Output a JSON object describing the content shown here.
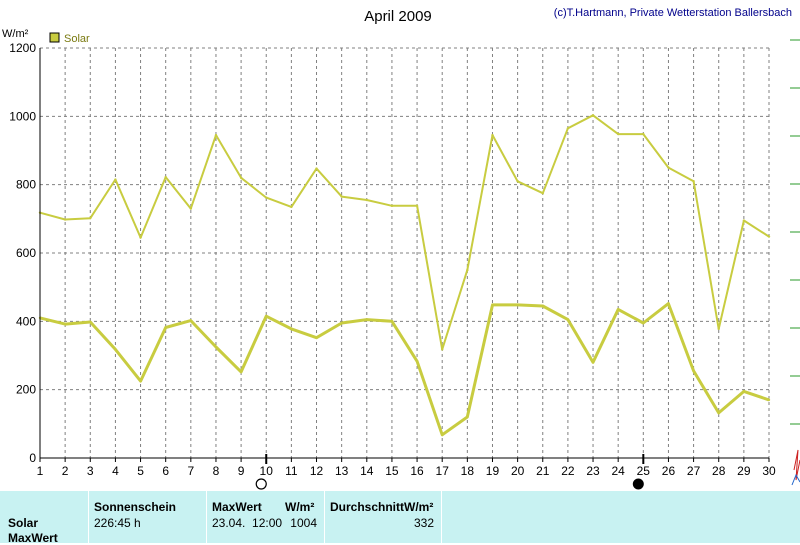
{
  "chart_data": {
    "type": "line",
    "title": "April 2009",
    "credit": "(c)T.Hartmann, Private Wetterstation Ballersbach",
    "ylabel": "W/m²",
    "ylim": [
      0,
      1200
    ],
    "yticks": [
      "0",
      "200",
      "400",
      "600",
      "800",
      "1000",
      "1200"
    ],
    "xlim": [
      1,
      30
    ],
    "x": [
      1,
      2,
      3,
      4,
      5,
      6,
      7,
      8,
      9,
      10,
      11,
      12,
      13,
      14,
      15,
      16,
      17,
      18,
      19,
      20,
      21,
      22,
      23,
      24,
      25,
      26,
      27,
      28,
      29,
      30
    ],
    "xticks": [
      "1",
      "2",
      "3",
      "4",
      "5",
      "6",
      "7",
      "8",
      "9",
      "10",
      "11",
      "12",
      "13",
      "14",
      "15",
      "16",
      "17",
      "18",
      "19",
      "20",
      "21",
      "22",
      "23",
      "24",
      "25",
      "26",
      "27",
      "28",
      "29",
      "30"
    ],
    "legend": {
      "label": "Solar",
      "position": "top-left"
    },
    "grid": true,
    "line_color": "#c8cc40",
    "series": [
      {
        "name": "Solar",
        "role": "max",
        "values": [
          718,
          698,
          702,
          815,
          645,
          822,
          730,
          945,
          820,
          762,
          735,
          847,
          765,
          755,
          738,
          738,
          318,
          550,
          945,
          810,
          775,
          965,
          1003,
          948,
          948,
          850,
          810,
          378,
          695,
          648
        ]
      },
      {
        "name": "Solar",
        "role": "average",
        "values": [
          410,
          392,
          398,
          318,
          225,
          382,
          402,
          325,
          252,
          415,
          378,
          352,
          395,
          405,
          400,
          283,
          68,
          120,
          448,
          448,
          445,
          405,
          280,
          435,
          395,
          452,
          255,
          132,
          195,
          170
        ]
      }
    ],
    "moon_phases": [
      {
        "day": 10,
        "phase": "full-moon"
      },
      {
        "day": 25,
        "phase": "new-moon"
      }
    ]
  },
  "summary": {
    "row_labels": [
      "Solar",
      "MaxWert"
    ],
    "headers": {
      "sunshine": "Sonnenschein",
      "maxvalue": "MaxWert",
      "maxunit": "W/m²",
      "average": "DurchschnittW/m²"
    },
    "values": {
      "sunshine": "226:45 h",
      "max_datetime": "23.04.  12:00",
      "max_value": "1004",
      "average": "332"
    }
  }
}
